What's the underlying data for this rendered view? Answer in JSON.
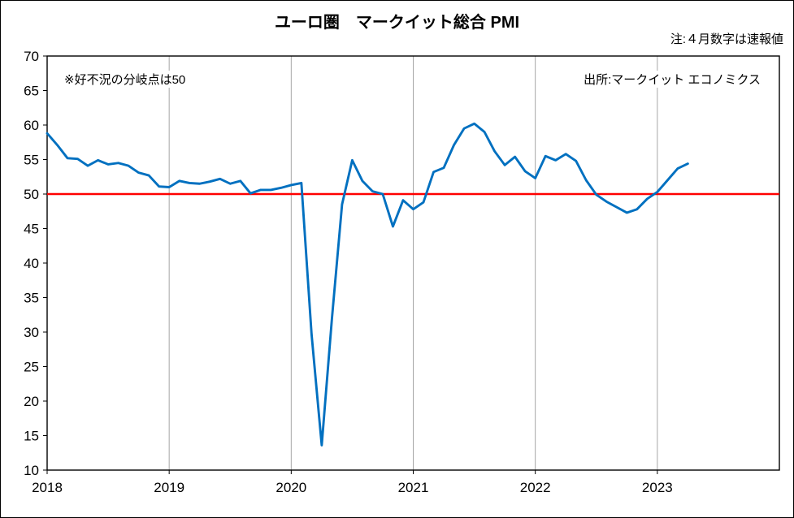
{
  "notes": {
    "flash_note": "注:４月数字は速報値",
    "threshold_note": "※好不況の分岐点は50",
    "source": "出所:マークイット エコノミクス"
  },
  "colors": {
    "line": "#0070C0",
    "reference": "#FF0000",
    "grid": "#a6a6a6",
    "axis": "#000000"
  },
  "chart_data": {
    "type": "line",
    "title": "ユーロ圏　マークイット総合 PMI",
    "x_frequency": "monthly",
    "x_start": "2018-01",
    "x_end": "2023-04",
    "months_total": 72,
    "x_ticks": [
      {
        "label": "2018",
        "month": 0
      },
      {
        "label": "2019",
        "month": 12
      },
      {
        "label": "2020",
        "month": 24
      },
      {
        "label": "2021",
        "month": 36
      },
      {
        "label": "2022",
        "month": 48
      },
      {
        "label": "2023",
        "month": 60
      }
    ],
    "ylim": [
      10,
      70
    ],
    "ytick_step": 5,
    "grid": "vertical-only",
    "legend": "none",
    "reference_line": {
      "value": 50,
      "color": "#FF0000",
      "meaning": "好不況の分岐点"
    },
    "series": [
      {
        "name": "マークイット総合PMI",
        "color": "#0070C0",
        "values": [
          58.8,
          57.1,
          55.2,
          55.1,
          54.1,
          54.9,
          54.3,
          54.5,
          54.1,
          53.1,
          52.7,
          51.1,
          51.0,
          51.9,
          51.6,
          51.5,
          51.8,
          52.2,
          51.5,
          51.9,
          50.1,
          50.6,
          50.6,
          50.9,
          51.3,
          51.6,
          29.7,
          13.6,
          31.9,
          48.5,
          54.9,
          51.9,
          50.4,
          50.0,
          45.3,
          49.1,
          47.8,
          48.8,
          53.2,
          53.8,
          57.1,
          59.5,
          60.2,
          59.0,
          56.2,
          54.2,
          55.4,
          53.3,
          52.3,
          55.5,
          54.9,
          55.8,
          54.8,
          52.0,
          49.9,
          48.9,
          48.1,
          47.3,
          47.8,
          49.3,
          50.3,
          52.0,
          53.7,
          54.4
        ]
      }
    ]
  }
}
